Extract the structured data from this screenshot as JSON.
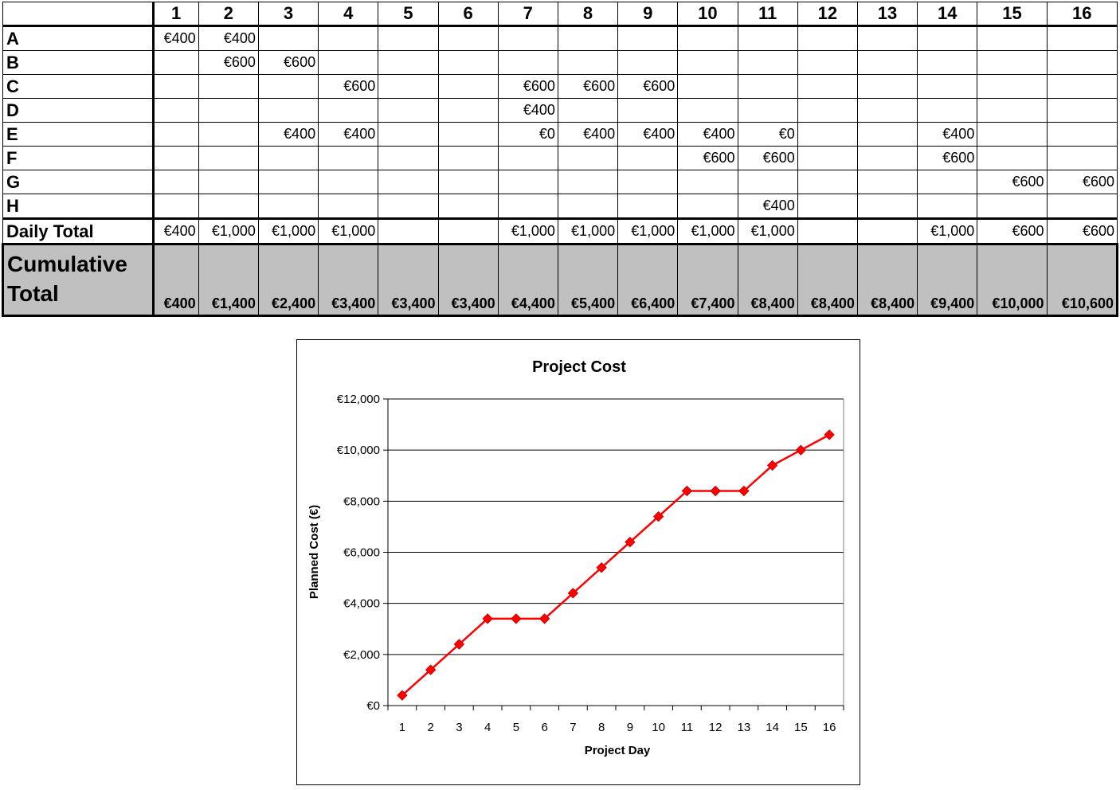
{
  "table": {
    "days": [
      "1",
      "2",
      "3",
      "4",
      "5",
      "6",
      "7",
      "8",
      "9",
      "10",
      "11",
      "12",
      "13",
      "14",
      "15",
      "16"
    ],
    "tasks": [
      {
        "label": "A",
        "cells": [
          "€400",
          "€400",
          "",
          "",
          "",
          "",
          "",
          "",
          "",
          "",
          "",
          "",
          "",
          "",
          "",
          ""
        ]
      },
      {
        "label": "B",
        "cells": [
          "",
          "€600",
          "€600",
          "",
          "",
          "",
          "",
          "",
          "",
          "",
          "",
          "",
          "",
          "",
          "",
          ""
        ]
      },
      {
        "label": "C",
        "cells": [
          "",
          "",
          "",
          "€600",
          "",
          "",
          "€600",
          "€600",
          "€600",
          "",
          "",
          "",
          "",
          "",
          "",
          ""
        ]
      },
      {
        "label": "D",
        "cells": [
          "",
          "",
          "",
          "",
          "",
          "",
          "€400",
          "",
          "",
          "",
          "",
          "",
          "",
          "",
          "",
          ""
        ]
      },
      {
        "label": "E",
        "cells": [
          "",
          "",
          "€400",
          "€400",
          "",
          "",
          "€0",
          "€400",
          "€400",
          "€400",
          "€0",
          "",
          "",
          "€400",
          "",
          ""
        ]
      },
      {
        "label": "F",
        "cells": [
          "",
          "",
          "",
          "",
          "",
          "",
          "",
          "",
          "",
          "€600",
          "€600",
          "",
          "",
          "€600",
          "",
          ""
        ]
      },
      {
        "label": "G",
        "cells": [
          "",
          "",
          "",
          "",
          "",
          "",
          "",
          "",
          "",
          "",
          "",
          "",
          "",
          "",
          "€600",
          "€600"
        ]
      },
      {
        "label": "H",
        "cells": [
          "",
          "",
          "",
          "",
          "",
          "",
          "",
          "",
          "",
          "",
          "€400",
          "",
          "",
          "",
          "",
          ""
        ]
      }
    ],
    "daily_total": {
      "label": "Daily Total",
      "cells": [
        "€400",
        "€1,000",
        "€1,000",
        "€1,000",
        "",
        "",
        "€1,000",
        "€1,000",
        "€1,000",
        "€1,000",
        "€1,000",
        "",
        "",
        "€1,000",
        "€600",
        "€600"
      ]
    },
    "cumulative_total": {
      "label": "Cumulative Total",
      "cells": [
        "€400",
        "€1,400",
        "€2,400",
        "€3,400",
        "€3,400",
        "€3,400",
        "€4,400",
        "€5,400",
        "€6,400",
        "€7,400",
        "€8,400",
        "€8,400",
        "€8,400",
        "€9,400",
        "€10,000",
        "€10,600"
      ]
    }
  },
  "chart_data": {
    "type": "line",
    "title": "Project Cost",
    "xlabel": "Project Day",
    "ylabel": "Planned Cost (€)",
    "categories": [
      "1",
      "2",
      "3",
      "4",
      "5",
      "6",
      "7",
      "8",
      "9",
      "10",
      "11",
      "12",
      "13",
      "14",
      "15",
      "16"
    ],
    "series": [
      {
        "values": [
          400,
          1400,
          2400,
          3400,
          3400,
          3400,
          4400,
          5400,
          6400,
          7400,
          8400,
          8400,
          8400,
          9400,
          10000,
          10600
        ]
      }
    ],
    "ylim": [
      0,
      12000
    ],
    "yticks": [
      0,
      2000,
      4000,
      6000,
      8000,
      10000,
      12000
    ],
    "ytick_labels": [
      "€0",
      "€2,000",
      "€4,000",
      "€6,000",
      "€8,000",
      "€10,000",
      "€12,000"
    ],
    "grid": true,
    "legend": "none",
    "colors": {
      "series": "#ff0000",
      "grid": "#000000"
    }
  }
}
